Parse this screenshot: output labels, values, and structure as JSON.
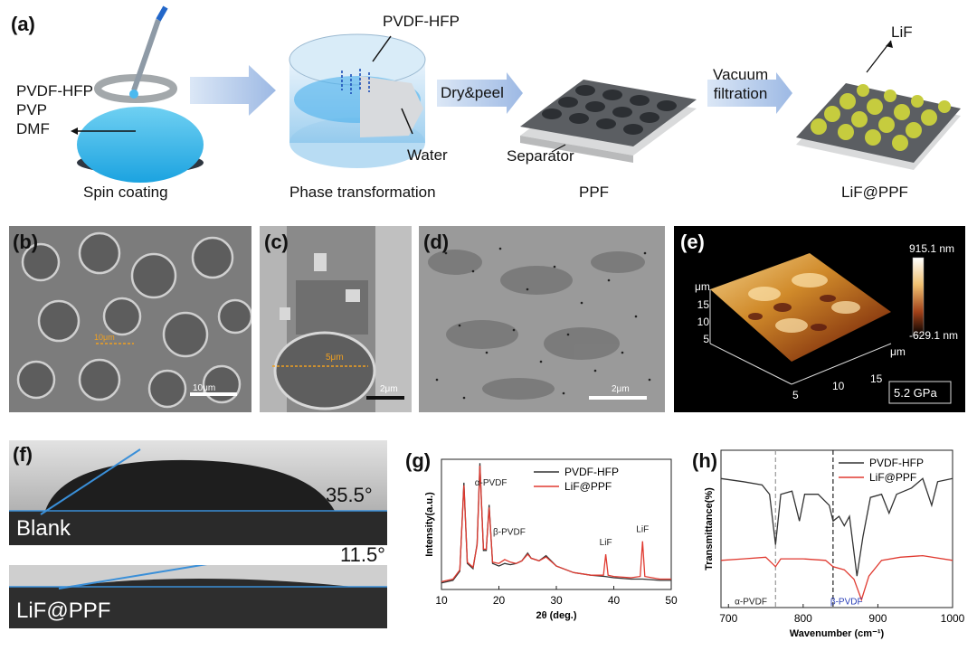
{
  "panel_a": {
    "label": "(a)",
    "solution": [
      "PVDF-HFP",
      "PVP",
      "DMF"
    ],
    "pvdf_label": "PVDF-HFP",
    "water_label": "Water",
    "dry_peel": "Dry&peel",
    "vacuum": [
      "Vacuum",
      "filtration"
    ],
    "separator": "Separator",
    "lif": "LiF",
    "steps": [
      "Spin coating",
      "Phase transformation",
      "PPF",
      "LiF@PPF"
    ]
  },
  "panel_b": {
    "label": "(b)",
    "marker": "10μm",
    "scale": "10μm"
  },
  "panel_c": {
    "label": "(c)",
    "marker": "5μm",
    "scale": "2μm"
  },
  "panel_d": {
    "label": "(d)",
    "scale": "2μm"
  },
  "panel_e": {
    "label": "(e)",
    "colorbar_max": "915.1 nm",
    "colorbar_min": "-629.1 nm",
    "unit_y": "μm",
    "unit_x": "μm",
    "y_ticks": [
      "5",
      "10",
      "15"
    ],
    "x_ticks": [
      "5",
      "10",
      "15"
    ],
    "modulus": "5.2 GPa"
  },
  "panel_f": {
    "label": "(f)",
    "blank_label": "Blank",
    "blank_angle": "35.5°",
    "lif_label": "LiF@PPF",
    "lif_angle": "11.5°"
  },
  "panel_g": {
    "label": "(g)",
    "ylabel": "Intensity(a.u.)",
    "xlabel": "2θ (deg.)"
  },
  "panel_h": {
    "label": "(h)",
    "ylabel": "Transmittance(%)",
    "xlabel": "Wavenumber (cm⁻¹)"
  },
  "chart_data": [
    {
      "type": "line",
      "panel": "g",
      "xlabel": "2θ (deg.)",
      "ylabel": "Intensity(a.u.)",
      "xlim": [
        10,
        50
      ],
      "x_ticks": [
        "10",
        "20",
        "30",
        "40",
        "50"
      ],
      "legend_position": "top-right",
      "series": [
        {
          "name": "PVDF-HFP",
          "color": "#333333",
          "points": [
            [
              10,
              0.05
            ],
            [
              12,
              0.07
            ],
            [
              13.2,
              0.14
            ],
            [
              13.9,
              0.82
            ],
            [
              14.5,
              0.2
            ],
            [
              15.5,
              0.16
            ],
            [
              16.2,
              0.35
            ],
            [
              16.7,
              0.97
            ],
            [
              17.3,
              0.3
            ],
            [
              17.8,
              0.3
            ],
            [
              18.3,
              0.65
            ],
            [
              18.9,
              0.2
            ],
            [
              20,
              0.18
            ],
            [
              21,
              0.2
            ],
            [
              22,
              0.19
            ],
            [
              23,
              0.2
            ],
            [
              24,
              0.22
            ],
            [
              25,
              0.28
            ],
            [
              25.6,
              0.24
            ],
            [
              27,
              0.22
            ],
            [
              28.2,
              0.26
            ],
            [
              30,
              0.18
            ],
            [
              33,
              0.13
            ],
            [
              36,
              0.11
            ],
            [
              38.5,
              0.1
            ],
            [
              40,
              0.09
            ],
            [
              43,
              0.08
            ],
            [
              45,
              0.08
            ],
            [
              48,
              0.07
            ],
            [
              50,
              0.07
            ]
          ]
        },
        {
          "name": "LiF@PPF",
          "color": "#e03a30",
          "points": [
            [
              10,
              0.06
            ],
            [
              12,
              0.08
            ],
            [
              13.2,
              0.15
            ],
            [
              13.9,
              0.8
            ],
            [
              14.5,
              0.21
            ],
            [
              15.5,
              0.17
            ],
            [
              16.2,
              0.34
            ],
            [
              16.7,
              0.95
            ],
            [
              17.3,
              0.31
            ],
            [
              17.8,
              0.31
            ],
            [
              18.3,
              0.63
            ],
            [
              18.9,
              0.21
            ],
            [
              20,
              0.2
            ],
            [
              21,
              0.23
            ],
            [
              22,
              0.21
            ],
            [
              23,
              0.2
            ],
            [
              24,
              0.22
            ],
            [
              25,
              0.27
            ],
            [
              25.6,
              0.24
            ],
            [
              27,
              0.22
            ],
            [
              28.2,
              0.25
            ],
            [
              30,
              0.18
            ],
            [
              33,
              0.13
            ],
            [
              36,
              0.11
            ],
            [
              38.2,
              0.11
            ],
            [
              38.6,
              0.27
            ],
            [
              39,
              0.11
            ],
            [
              40,
              0.1
            ],
            [
              43,
              0.09
            ],
            [
              44.6,
              0.1
            ],
            [
              45,
              0.37
            ],
            [
              45.4,
              0.1
            ],
            [
              48,
              0.08
            ],
            [
              50,
              0.08
            ]
          ]
        }
      ],
      "annotations": [
        "α-PVDF",
        "β-PVDF",
        "LiF",
        "LiF"
      ]
    },
    {
      "type": "line",
      "panel": "h",
      "xlabel": "Wavenumber (cm⁻¹)",
      "ylabel": "Transmittance(%)",
      "xlim": [
        690,
        1000
      ],
      "x_ticks": [
        "700",
        "800",
        "900",
        "1000"
      ],
      "legend_position": "top-right",
      "vlines": [
        763,
        840
      ],
      "series": [
        {
          "name": "PVDF-HFP",
          "color": "#333333",
          "points": [
            [
              690,
              0.82
            ],
            [
              720,
              0.8
            ],
            [
              745,
              0.78
            ],
            [
              755,
              0.72
            ],
            [
              763,
              0.4
            ],
            [
              770,
              0.72
            ],
            [
              785,
              0.74
            ],
            [
              795,
              0.55
            ],
            [
              802,
              0.72
            ],
            [
              820,
              0.72
            ],
            [
              835,
              0.65
            ],
            [
              840,
              0.55
            ],
            [
              848,
              0.58
            ],
            [
              855,
              0.52
            ],
            [
              862,
              0.58
            ],
            [
              872,
              0.2
            ],
            [
              880,
              0.45
            ],
            [
              890,
              0.7
            ],
            [
              905,
              0.72
            ],
            [
              915,
              0.6
            ],
            [
              925,
              0.72
            ],
            [
              945,
              0.76
            ],
            [
              960,
              0.82
            ],
            [
              972,
              0.65
            ],
            [
              980,
              0.8
            ],
            [
              1000,
              0.82
            ]
          ]
        },
        {
          "name": "LiF@PPF",
          "color": "#e03a30",
          "points": [
            [
              690,
              0.3
            ],
            [
              720,
              0.31
            ],
            [
              750,
              0.32
            ],
            [
              763,
              0.26
            ],
            [
              770,
              0.31
            ],
            [
              800,
              0.31
            ],
            [
              830,
              0.3
            ],
            [
              840,
              0.26
            ],
            [
              855,
              0.24
            ],
            [
              868,
              0.18
            ],
            [
              878,
              0.05
            ],
            [
              888,
              0.2
            ],
            [
              905,
              0.3
            ],
            [
              930,
              0.32
            ],
            [
              960,
              0.33
            ],
            [
              1000,
              0.3
            ]
          ]
        }
      ],
      "annotations": [
        "α-PVDF",
        "β-PVDF"
      ]
    }
  ]
}
